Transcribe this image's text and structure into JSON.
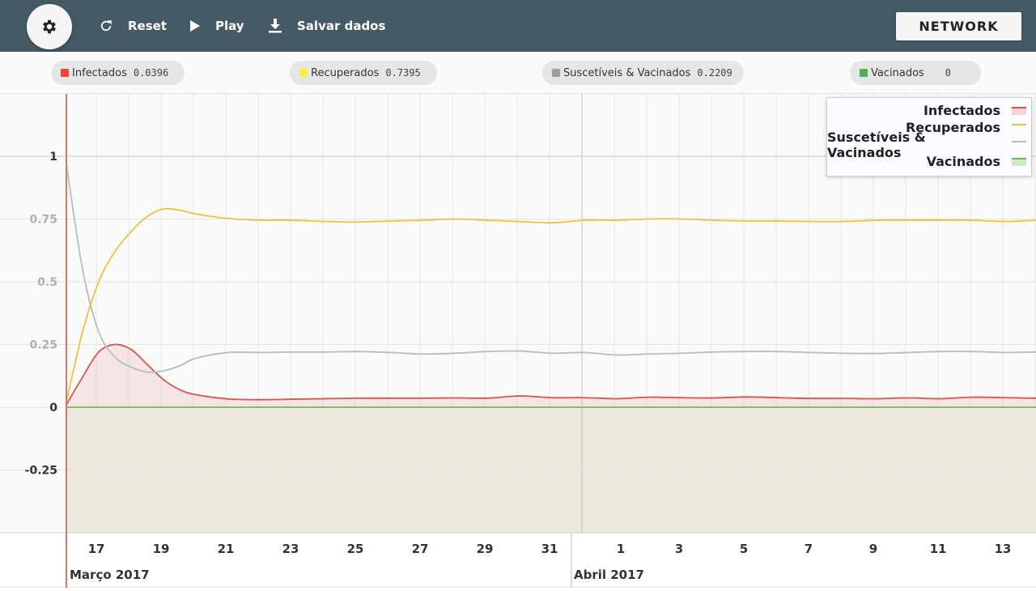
{
  "toolbar": {
    "settings_icon": "gear-icon",
    "reset_label": "Reset",
    "play_label": "Play",
    "save_label": "Salvar dados",
    "network_label": "NETWORK"
  },
  "stats": [
    {
      "name": "Infectados",
      "value": "0.0396",
      "color": "#f44336"
    },
    {
      "name": "Recuperados",
      "value": "0.7395",
      "color": "#ffeb3b"
    },
    {
      "name": "Suscetíveis & Vacinados",
      "value": "0.2209",
      "color": "#9e9e9e"
    },
    {
      "name": "Vacinados",
      "value": "0",
      "color": "#4caf50"
    }
  ],
  "chart_data": {
    "type": "line",
    "x_ticks": [
      "17",
      "19",
      "21",
      "23",
      "25",
      "27",
      "29",
      "31",
      "1",
      "3",
      "5",
      "7",
      "9",
      "11",
      "13",
      "1"
    ],
    "month_labels": [
      "Março 2017",
      "Abril 2017"
    ],
    "y_ticks": [
      "1",
      "0.75",
      "0.5",
      "0.25",
      "0",
      "-0.25"
    ],
    "ylim": [
      -0.5,
      1.25
    ],
    "xlim_days": [
      0,
      37.5
    ],
    "x_day_index": [
      0,
      0.5,
      1,
      1.5,
      2,
      2.5,
      3,
      3.5,
      4,
      5,
      6,
      7,
      8,
      9,
      10,
      11,
      12,
      13,
      14,
      15,
      16,
      17,
      18,
      19,
      20,
      21,
      22,
      23,
      24,
      25,
      26,
      27,
      28,
      29,
      30,
      31,
      32,
      33,
      34,
      35,
      36,
      37
    ],
    "series": [
      {
        "name": "Infectados",
        "color": "#d9534f",
        "fill": "rgba(229,115,115,0.15)",
        "values": [
          0.01,
          0.12,
          0.22,
          0.25,
          0.23,
          0.17,
          0.11,
          0.07,
          0.05,
          0.033,
          0.03,
          0.032,
          0.034,
          0.036,
          0.036,
          0.036,
          0.037,
          0.036,
          0.045,
          0.038,
          0.038,
          0.034,
          0.04,
          0.038,
          0.037,
          0.041,
          0.038,
          0.035,
          0.035,
          0.034,
          0.037,
          0.034,
          0.04,
          0.038,
          0.036,
          0.037,
          0.035,
          0.036,
          0.036,
          0.036,
          0.036,
          0.0396
        ]
      },
      {
        "name": "Recuperados",
        "color": "#f0c13a",
        "fill": "none",
        "values": [
          0.02,
          0.3,
          0.5,
          0.62,
          0.7,
          0.76,
          0.79,
          0.785,
          0.77,
          0.752,
          0.745,
          0.745,
          0.74,
          0.738,
          0.742,
          0.745,
          0.75,
          0.745,
          0.74,
          0.735,
          0.745,
          0.745,
          0.75,
          0.75,
          0.745,
          0.742,
          0.742,
          0.74,
          0.74,
          0.745,
          0.745,
          0.745,
          0.745,
          0.74,
          0.745,
          0.745,
          0.745,
          0.74,
          0.745,
          0.745,
          0.745,
          0.7395
        ]
      },
      {
        "name": "Suscetíveis & Vacinados",
        "color": "#b0bec5",
        "fill": "none",
        "values": [
          0.97,
          0.55,
          0.3,
          0.2,
          0.16,
          0.14,
          0.145,
          0.165,
          0.195,
          0.218,
          0.218,
          0.22,
          0.22,
          0.222,
          0.218,
          0.212,
          0.215,
          0.222,
          0.224,
          0.215,
          0.218,
          0.208,
          0.212,
          0.215,
          0.22,
          0.222,
          0.222,
          0.218,
          0.215,
          0.214,
          0.218,
          0.222,
          0.222,
          0.218,
          0.22,
          0.218,
          0.22,
          0.222,
          0.22,
          0.22,
          0.22,
          0.2209
        ]
      },
      {
        "name": "Vacinados",
        "color": "#6abf4b",
        "fill": "none",
        "values": [
          0,
          0,
          0,
          0,
          0,
          0,
          0,
          0,
          0,
          0,
          0,
          0,
          0,
          0,
          0,
          0,
          0,
          0,
          0,
          0,
          0,
          0,
          0,
          0,
          0,
          0,
          0,
          0,
          0,
          0,
          0,
          0,
          0,
          0,
          0,
          0,
          0,
          0,
          0,
          0,
          0,
          0
        ]
      }
    ],
    "legend_position": "top-right",
    "grid": true
  }
}
